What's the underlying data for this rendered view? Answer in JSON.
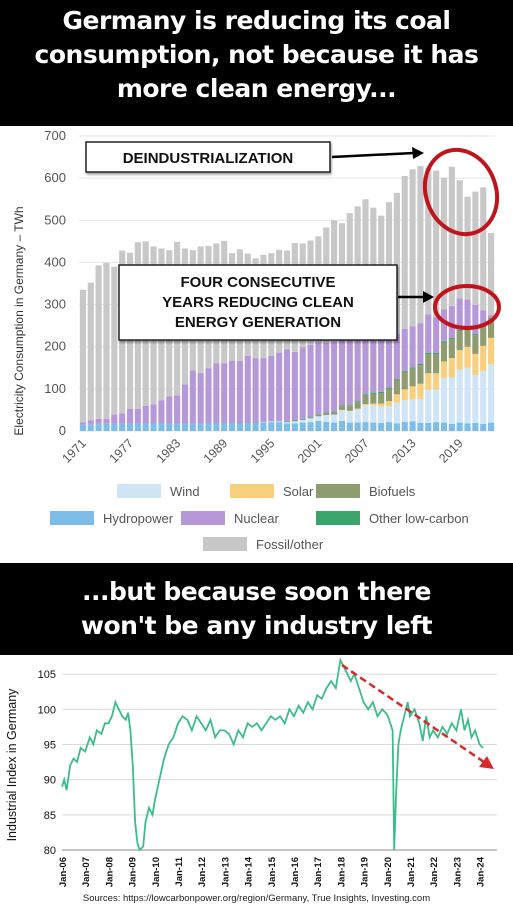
{
  "header": {
    "lines": [
      "Germany is reducing its coal",
      "consumption, not because it has",
      "more clean energy..."
    ]
  },
  "middle": {
    "lines": [
      "...but because soon there",
      "won't be any industry left"
    ]
  },
  "annotations": {
    "deindustrialization": "DEINDUSTRIALIZATION",
    "clean_energy": [
      "FOUR CONSECUTIVE",
      "YEARS REDUCING CLEAN",
      "ENERGY GENERATION"
    ]
  },
  "sources": "Sources:  https://lowcarbonpower.org/region/Germany,  True Insights, Investing.com",
  "colors": {
    "wind": "#cfe5f5",
    "solar": "#f8cf7c",
    "biofuels": "#8e9c70",
    "hydropower": "#7dbde8",
    "nuclear": "#b698d9",
    "other": "#3aa46b",
    "fossil": "#c8c8c8",
    "arrow": "#d72b2b",
    "circle": "#c0141c",
    "line": "#3cbc8c"
  },
  "chart_data": [
    {
      "type": "bar",
      "stacked": true,
      "ylabel": "Electricity Consumption in Germany – TWh",
      "ylim": [
        0,
        700
      ],
      "yticks": [
        0,
        100,
        200,
        300,
        400,
        500,
        600,
        700
      ],
      "xtick_labels": [
        "1971",
        "1977",
        "1983",
        "1989",
        "1995",
        "2001",
        "2007",
        "2013",
        "2019"
      ],
      "legend": [
        "Wind",
        "Solar",
        "Biofuels",
        "Hydropower",
        "Nuclear",
        "Other low-carbon",
        "Fossil/other"
      ],
      "legend_position": "bottom",
      "categories": [
        1971,
        1972,
        1973,
        1974,
        1975,
        1976,
        1977,
        1978,
        1979,
        1980,
        1981,
        1982,
        1983,
        1984,
        1985,
        1986,
        1987,
        1988,
        1989,
        1990,
        1991,
        1992,
        1993,
        1994,
        1995,
        1996,
        1997,
        1998,
        1999,
        2000,
        2001,
        2002,
        2003,
        2004,
        2005,
        2006,
        2007,
        2008,
        2009,
        2010,
        2011,
        2012,
        2013,
        2014,
        2015,
        2016,
        2017,
        2018,
        2019,
        2020,
        2021,
        2022,
        2023
      ],
      "series": [
        {
          "name": "Wind",
          "values": [
            0,
            0,
            0,
            0,
            0,
            0,
            0,
            0,
            0,
            0,
            0,
            0,
            0,
            0,
            0,
            0,
            0,
            0,
            0,
            0,
            0,
            0,
            0,
            1,
            2,
            2,
            3,
            5,
            6,
            9,
            11,
            16,
            19,
            25,
            27,
            31,
            40,
            41,
            39,
            38,
            49,
            51,
            52,
            57,
            79,
            78,
            106,
            110,
            126,
            132,
            114,
            125,
            139
          ]
        },
        {
          "name": "Solar",
          "values": [
            0,
            0,
            0,
            0,
            0,
            0,
            0,
            0,
            0,
            0,
            0,
            0,
            0,
            0,
            0,
            0,
            0,
            0,
            0,
            0,
            0,
            0,
            0,
            0,
            0,
            0,
            0,
            0,
            0,
            0,
            0,
            0,
            0,
            1,
            1,
            2,
            3,
            4,
            7,
            12,
            20,
            26,
            31,
            36,
            39,
            38,
            39,
            46,
            46,
            50,
            50,
            60,
            62
          ]
        },
        {
          "name": "Biofuels",
          "values": [
            0,
            0,
            0,
            0,
            0,
            0,
            0,
            0,
            0,
            0,
            0,
            0,
            0,
            0,
            0,
            0,
            0,
            0,
            0,
            1,
            1,
            1,
            1,
            1,
            1,
            1,
            2,
            2,
            2,
            3,
            4,
            5,
            7,
            9,
            11,
            15,
            20,
            23,
            25,
            29,
            33,
            40,
            42,
            44,
            45,
            45,
            45,
            45,
            45,
            45,
            44,
            46,
            44
          ]
        },
        {
          "name": "Hydropower",
          "values": [
            15,
            16,
            17,
            17,
            17,
            17,
            17,
            18,
            18,
            19,
            19,
            18,
            18,
            18,
            18,
            18,
            19,
            19,
            19,
            19,
            18,
            19,
            19,
            20,
            21,
            21,
            18,
            18,
            20,
            21,
            24,
            22,
            20,
            24,
            20,
            20,
            21,
            20,
            19,
            21,
            18,
            22,
            23,
            19,
            19,
            21,
            20,
            17,
            20,
            18,
            19,
            17,
            20
          ]
        },
        {
          "name": "Nuclear",
          "values": [
            6,
            9,
            12,
            12,
            22,
            25,
            36,
            35,
            42,
            44,
            54,
            64,
            66,
            93,
            126,
            120,
            130,
            142,
            142,
            147,
            147,
            158,
            153,
            151,
            154,
            162,
            170,
            162,
            170,
            170,
            171,
            165,
            165,
            167,
            163,
            167,
            141,
            149,
            135,
            141,
            108,
            100,
            97,
            97,
            92,
            85,
            76,
            76,
            75,
            64,
            69,
            35,
            7
          ]
        },
        {
          "name": "Other low-carbon",
          "values": [
            0,
            0,
            0,
            0,
            0,
            0,
            0,
            0,
            0,
            0,
            0,
            0,
            0,
            0,
            0,
            0,
            0,
            0,
            0,
            0,
            0,
            0,
            0,
            0,
            0,
            0,
            1,
            1,
            1,
            1,
            1,
            1,
            1,
            2,
            2,
            2,
            3,
            3,
            3,
            3,
            3,
            3,
            3,
            3,
            3,
            3,
            3,
            3,
            3,
            3,
            3,
            3,
            3
          ]
        },
        {
          "name": "Fossil/other",
          "values": [
            314,
            327,
            364,
            370,
            351,
            386,
            370,
            395,
            390,
            375,
            360,
            347,
            365,
            322,
            285,
            300,
            290,
            284,
            290,
            255,
            265,
            243,
            237,
            245,
            244,
            244,
            234,
            258,
            246,
            248,
            251,
            274,
            288,
            265,
            293,
            296,
            322,
            290,
            283,
            299,
            334,
            363,
            373,
            373,
            348,
            348,
            312,
            330,
            280,
            244,
            269,
            292,
            195
          ]
        }
      ]
    },
    {
      "type": "line",
      "ylabel": "Industrial Index in Germany",
      "ylim": [
        80,
        107
      ],
      "yticks": [
        80,
        85,
        90,
        95,
        100,
        105
      ],
      "xlim": [
        2006.0,
        2024.75
      ],
      "xtick_labels": [
        "Jan-06",
        "Jan-07",
        "Jan-08",
        "Jan-09",
        "Jan-10",
        "Jan-11",
        "Jan-12",
        "Jan-13",
        "Jan-14",
        "Jan-15",
        "Jan-16",
        "Jan-17",
        "Jan-18",
        "Jan-19",
        "Jan-20",
        "Jan-21",
        "Jan-22",
        "Jan-23",
        "Jan-24"
      ],
      "series": [
        {
          "name": "",
          "x": [
            2006.0,
            2006.1,
            2006.2,
            2006.35,
            2006.5,
            2006.65,
            2006.8,
            2007.0,
            2007.2,
            2007.35,
            2007.5,
            2007.7,
            2007.85,
            2008.0,
            2008.15,
            2008.3,
            2008.45,
            2008.6,
            2008.75,
            2008.85,
            2008.95,
            2009.05,
            2009.15,
            2009.25,
            2009.35,
            2009.5,
            2009.6,
            2009.75,
            2009.9,
            2010.0,
            2010.2,
            2010.4,
            2010.6,
            2010.8,
            2011.0,
            2011.2,
            2011.4,
            2011.6,
            2011.8,
            2012.0,
            2012.2,
            2012.4,
            2012.6,
            2012.8,
            2013.0,
            2013.2,
            2013.4,
            2013.6,
            2013.8,
            2014.0,
            2014.2,
            2014.4,
            2014.6,
            2014.8,
            2015.0,
            2015.2,
            2015.4,
            2015.6,
            2015.8,
            2016.0,
            2016.2,
            2016.4,
            2016.6,
            2016.8,
            2017.0,
            2017.2,
            2017.4,
            2017.6,
            2017.8,
            2018.0,
            2018.15,
            2018.3,
            2018.45,
            2018.6,
            2018.8,
            2019.0,
            2019.2,
            2019.4,
            2019.6,
            2019.8,
            2019.95,
            2020.05,
            2020.15,
            2020.25,
            2020.32,
            2020.4,
            2020.5,
            2020.6,
            2020.75,
            2020.9,
            2021.0,
            2021.2,
            2021.4,
            2021.55,
            2021.7,
            2021.85,
            2022.0,
            2022.2,
            2022.4,
            2022.6,
            2022.8,
            2023.0,
            2023.2,
            2023.35,
            2023.5,
            2023.65,
            2023.8,
            2024.0,
            2024.15
          ],
          "y": [
            89,
            90,
            88.5,
            92,
            93,
            92.5,
            94.5,
            94,
            96,
            95,
            97,
            96.5,
            98,
            98,
            99,
            101,
            100,
            99,
            98.5,
            99.5,
            97,
            92,
            84,
            81,
            80,
            80.5,
            84,
            86,
            85,
            87,
            90,
            93,
            95,
            96,
            98,
            99,
            98.5,
            97,
            99,
            98,
            97,
            98.5,
            96,
            97,
            97,
            96.5,
            95,
            97,
            96,
            98,
            97.5,
            98,
            97,
            98,
            99,
            98.5,
            99,
            98,
            100,
            99,
            100.5,
            99.5,
            101,
            100,
            102,
            101.5,
            103,
            104,
            103,
            107,
            106,
            105,
            104,
            105,
            103,
            101,
            100,
            101,
            99,
            100,
            99.5,
            99,
            98,
            97,
            80,
            88,
            95,
            97,
            99,
            101,
            99,
            100,
            98,
            95.5,
            99,
            96,
            97,
            96,
            97.5,
            96.5,
            98,
            97,
            100,
            97,
            98.5,
            96,
            97,
            95,
            94.5
          ]
        }
      ]
    }
  ]
}
